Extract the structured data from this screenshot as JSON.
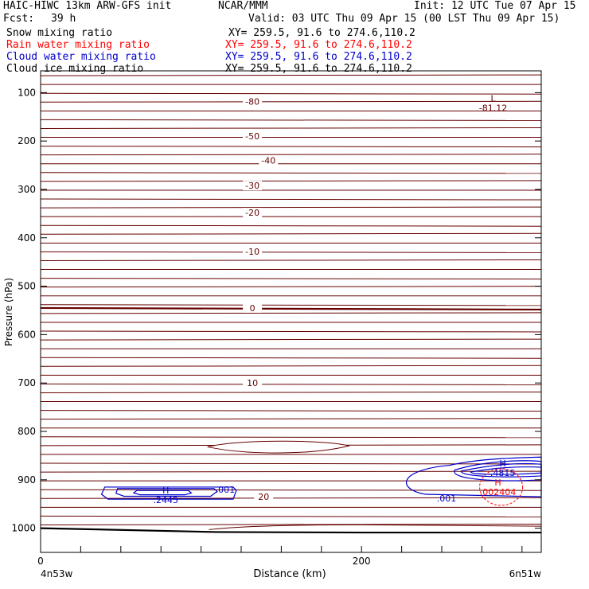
{
  "header": {
    "title": "HAIC-HIWC 13km ARW-GFS init",
    "org": "NCAR/MMM",
    "init": "Init: 12 UTC Tue 07 Apr 15",
    "fcst_label": "Fcst:",
    "fcst_value": "39 h",
    "valid": "Valid: 03 UTC Thu 09 Apr 15 (00 LST Thu 09 Apr 15)"
  },
  "fields": [
    {
      "name": "Snow mixing ratio",
      "xy": "XY= 259.5, 91.6 to 274.6,110.2",
      "color": "#000000"
    },
    {
      "name": "Rain water mixing ratio",
      "xy": "XY= 259.5, 91.6 to 274.6,110.2",
      "color": "#ff0000"
    },
    {
      "name": "Cloud water mixing ratio",
      "xy": "XY= 259.5, 91.6 to 274.6,110.2",
      "color": "#0000cc"
    },
    {
      "name": "Cloud ice mixing ratio",
      "xy": "XY= 259.5, 91.6 to 274.6,110.2",
      "color": "#000000"
    }
  ],
  "chart_data": {
    "type": "cross-section contour",
    "xlabel": "Distance (km)",
    "ylabel": "Pressure (hPa)",
    "x_endpoints": {
      "left": "4n53w",
      "right": "6n51w"
    },
    "xlim": [
      0,
      312
    ],
    "ylim": [
      1050,
      55
    ],
    "x_ticks": [
      0,
      200
    ],
    "y_ticks": [
      100,
      200,
      300,
      400,
      500,
      600,
      700,
      800,
      900,
      1000
    ],
    "colors": {
      "temperature": "#660000",
      "cloud_water": "#0000cc",
      "rain_water": "#ff0000",
      "terrain": "#000000"
    },
    "temperature_isotherms": [
      {
        "label": "-80",
        "x": 132,
        "p": 118
      },
      {
        "label": "-50",
        "x": 132,
        "p": 190
      },
      {
        "label": "-40",
        "x": 142,
        "p": 240
      },
      {
        "label": "-30",
        "x": 132,
        "p": 292
      },
      {
        "label": "-20",
        "x": 132,
        "p": 348
      },
      {
        "label": "-10",
        "x": 132,
        "p": 428
      },
      {
        "label": "0",
        "x": 132,
        "p": 545
      },
      {
        "label": "10",
        "x": 132,
        "p": 700
      },
      {
        "label": "20",
        "x": 139,
        "p": 935
      }
    ],
    "extrema": [
      {
        "type": "L",
        "value": "-81.12",
        "x": 282,
        "p": 118,
        "color": "#660000"
      },
      {
        "type": "H",
        "value": ".2445",
        "x": 78,
        "p": 928,
        "color": "#0000cc"
      },
      {
        "type": "H",
        "value": ".4815",
        "x": 288,
        "p": 872,
        "color": "#0000cc"
      },
      {
        "type": "H",
        "value": ".002404",
        "x": 285,
        "p": 912,
        "color": "#ff0000"
      }
    ],
    "contour_labels": [
      {
        "text": ".001",
        "x": 115,
        "p": 920,
        "color": "#0000cc"
      },
      {
        "text": ".001",
        "x": 253,
        "p": 938,
        "color": "#0000cc"
      }
    ]
  }
}
